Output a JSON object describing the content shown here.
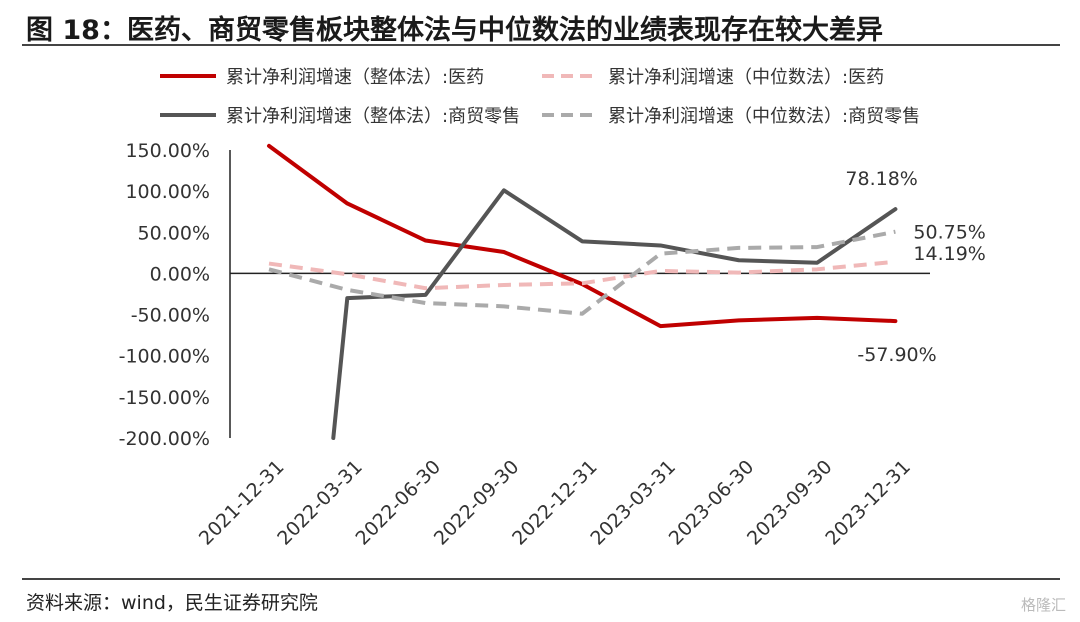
{
  "header": {
    "title": "图 18：医药、商贸零售板块整体法与中位数法的业绩表现存在较大差异"
  },
  "footer": {
    "source": "资料来源：wind，民生证券研究院",
    "watermark": "格隆汇"
  },
  "chart_data": {
    "type": "line",
    "categories": [
      "2021-12-31",
      "2022-03-31",
      "2022-06-30",
      "2022-09-30",
      "2022-12-31",
      "2023-03-31",
      "2023-06-30",
      "2023-09-30",
      "2023-12-31"
    ],
    "ylim": [
      -200,
      150
    ],
    "yticks": [
      150,
      100,
      50,
      0,
      -50,
      -100,
      -150,
      -200
    ],
    "ytick_labels": [
      "150.00%",
      "100.00%",
      "50.00%",
      "0.00%",
      "-50.00%",
      "-100.00%",
      "-150.00%",
      "-200.00%"
    ],
    "legend_position": "top",
    "series": [
      {
        "name": "累计净利润增速（整体法）:医药",
        "color": "#c00000",
        "style": "solid",
        "values": [
          155,
          85,
          40,
          26,
          -13,
          -64,
          -57,
          -54,
          -57.9
        ]
      },
      {
        "name": "累计净利润增速（中位数法）:医药",
        "color": "#f0b8b8",
        "style": "dashed",
        "values": [
          12,
          -1,
          -18,
          -14,
          -12,
          3,
          1,
          5,
          14.19
        ]
      },
      {
        "name": "累计净利润增速（整体法）:商贸零售",
        "color": "#555555",
        "style": "solid",
        "values": [
          null,
          -30,
          -26,
          101,
          39,
          34,
          16,
          13,
          78.18
        ],
        "start_from_below": true
      },
      {
        "name": "累计净利润增速（中位数法）:商贸零售",
        "color": "#aaaaaa",
        "style": "dashed",
        "values": [
          5,
          -20,
          -36,
          -40,
          -49,
          24,
          31,
          32,
          50.75
        ]
      }
    ],
    "annotations": [
      {
        "text": "78.18%",
        "series": 2,
        "index": 8
      },
      {
        "text": "50.75%",
        "series": 3,
        "index": 8
      },
      {
        "text": "14.19%",
        "series": 1,
        "index": 8
      },
      {
        "text": "-57.90%",
        "series": 0,
        "index": 8
      }
    ]
  }
}
